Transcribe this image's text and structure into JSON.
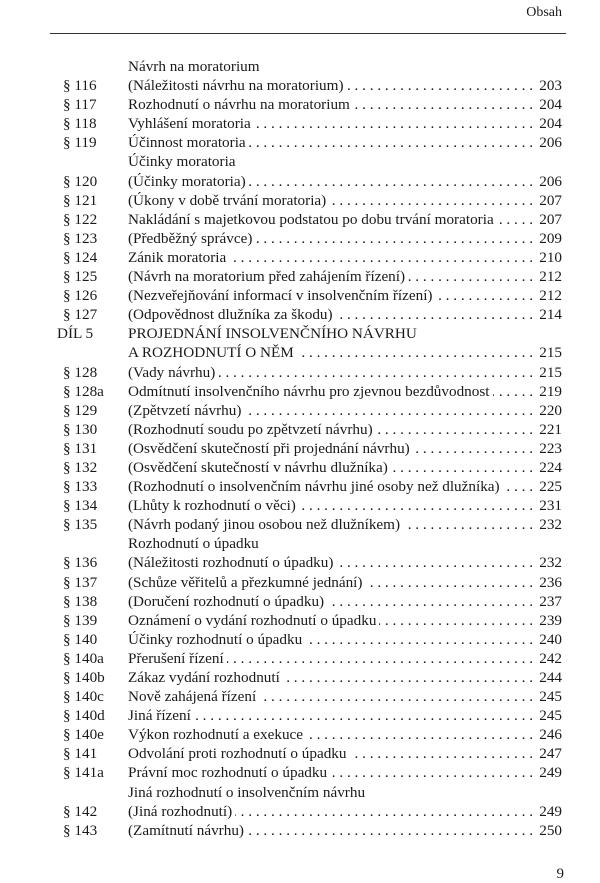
{
  "header": {
    "title": "Obsah"
  },
  "entries": [
    {
      "sec": "",
      "title": "Návrh na moratorium",
      "page": ""
    },
    {
      "sec": "§ 116",
      "title": "(Náležitosti návrhu na moratorium)",
      "page": "203"
    },
    {
      "sec": "§ 117",
      "title": "Rozhodnutí o návrhu na moratorium",
      "page": "204"
    },
    {
      "sec": "§ 118",
      "title": "Vyhlášení moratoria",
      "page": "204"
    },
    {
      "sec": "§ 119",
      "title": "Účinnost moratoria",
      "page": "206"
    },
    {
      "sec": "",
      "title": "Účinky moratoria",
      "page": ""
    },
    {
      "sec": "§ 120",
      "title": "(Účinky moratoria)",
      "page": "206"
    },
    {
      "sec": "§ 121",
      "title": "(Úkony v době trvání moratoria)",
      "page": "207"
    },
    {
      "sec": "§ 122",
      "title": "Nakládání s majetkovou podstatou po dobu trvání moratoria",
      "page": "207"
    },
    {
      "sec": "§ 123",
      "title": "(Předběžný správce)",
      "page": "209"
    },
    {
      "sec": "§ 124",
      "title": "Zánik moratoria",
      "page": "210"
    },
    {
      "sec": "§ 125",
      "title": "(Návrh na moratorium před zahájením řízení)",
      "page": "212"
    },
    {
      "sec": "§ 126",
      "title": "(Nezveřejňování informací v insolvenčním řízení)",
      "page": "212"
    },
    {
      "sec": "§ 127",
      "title": "(Odpovědnost dlužníka za škodu)",
      "page": "214"
    },
    {
      "sec": "DÍL 5",
      "title": "PROJEDNÁNÍ INSOLVENČNÍHO NÁVRHU",
      "page": "",
      "part": true
    },
    {
      "sec": "",
      "title": "A ROZHODNUTÍ O NĚM",
      "page": "215",
      "part": true
    },
    {
      "sec": "§ 128",
      "title": "(Vady návrhu)",
      "page": "215"
    },
    {
      "sec": "§ 128a",
      "title": "Odmítnutí insolvenčního návrhu pro zjevnou bezdůvodnost",
      "page": "219"
    },
    {
      "sec": "§ 129",
      "title": "(Zpětvzetí návrhu)",
      "page": "220"
    },
    {
      "sec": "§ 130",
      "title": "(Rozhodnutí soudu po zpětvzetí návrhu)",
      "page": "221"
    },
    {
      "sec": "§ 131",
      "title": "(Osvědčení skutečností při projednání návrhu)",
      "page": "223"
    },
    {
      "sec": "§ 132",
      "title": "(Osvědčení skutečností v návrhu dlužníka)",
      "page": "224"
    },
    {
      "sec": "§ 133",
      "title": "(Rozhodnutí o insolvenčním návrhu jiné osoby než dlužníka)",
      "page": "225"
    },
    {
      "sec": "§ 134",
      "title": "(Lhůty k rozhodnutí o věci)",
      "page": "231"
    },
    {
      "sec": "§ 135",
      "title": "(Návrh podaný jinou osobou než dlužníkem)",
      "page": "232"
    },
    {
      "sec": "",
      "title": "Rozhodnutí o úpadku",
      "page": ""
    },
    {
      "sec": "§ 136",
      "title": "(Náležitosti rozhodnutí o úpadku)",
      "page": "232"
    },
    {
      "sec": "§ 137",
      "title": "(Schůze věřitelů a přezkumné jednání)",
      "page": "236"
    },
    {
      "sec": "§ 138",
      "title": "(Doručení rozhodnutí o úpadku)",
      "page": "237"
    },
    {
      "sec": "§ 139",
      "title": "Oznámení o vydání rozhodnutí o úpadku",
      "page": "239"
    },
    {
      "sec": "§ 140",
      "title": "Účinky rozhodnutí o úpadku",
      "page": "240"
    },
    {
      "sec": "§ 140a",
      "title": "Přerušení řízení",
      "page": "242"
    },
    {
      "sec": "§ 140b",
      "title": "Zákaz vydání rozhodnutí",
      "page": "244"
    },
    {
      "sec": "§ 140c",
      "title": "Nově zahájená řízení",
      "page": "245"
    },
    {
      "sec": "§ 140d",
      "title": "Jiná řízení",
      "page": "245"
    },
    {
      "sec": "§ 140e",
      "title": "Výkon rozhodnutí a exekuce",
      "page": "246"
    },
    {
      "sec": "§ 141",
      "title": "Odvolání proti rozhodnutí o úpadku",
      "page": "247"
    },
    {
      "sec": "§ 141a",
      "title": "Právní moc rozhodnutí o úpadku",
      "page": "249"
    },
    {
      "sec": "",
      "title": "Jiná rozhodnutí o insolvenčním návrhu",
      "page": ""
    },
    {
      "sec": "§ 142",
      "title": "(Jiná rozhodnutí)",
      "page": "249"
    },
    {
      "sec": "§ 143",
      "title": "(Zamítnutí návrhu)",
      "page": "250"
    }
  ],
  "footer": {
    "page_number": "9"
  }
}
